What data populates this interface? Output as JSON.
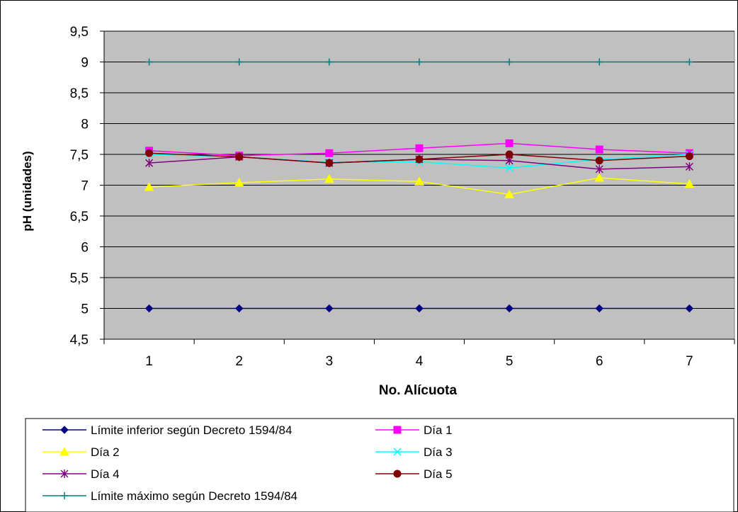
{
  "chart_data": {
    "type": "line",
    "title": "",
    "xlabel": "No. Alícuota",
    "ylabel": "pH (unidades)",
    "categories": [
      "1",
      "2",
      "3",
      "4",
      "5",
      "6",
      "7"
    ],
    "yticks": [
      "4,5",
      "5",
      "5,5",
      "6",
      "6,5",
      "7",
      "7,5",
      "8",
      "8,5",
      "9",
      "9,5"
    ],
    "ylim": [
      4.5,
      9.5
    ],
    "grid": "horizontal",
    "plot_background": "#C0C0C0",
    "legend_position": "bottom",
    "series": [
      {
        "name": "Límite inferior según Decreto 1594/84",
        "color": "#000080",
        "marker": "diamond",
        "values": [
          5,
          5,
          5,
          5,
          5,
          5,
          5
        ]
      },
      {
        "name": "Día 1",
        "color": "#FF00FF",
        "marker": "square",
        "values": [
          7.56,
          7.48,
          7.52,
          7.6,
          7.68,
          7.58,
          7.52
        ]
      },
      {
        "name": "Día 2",
        "color": "#FFFF00",
        "marker": "triangle",
        "values": [
          6.97,
          7.04,
          7.1,
          7.06,
          6.85,
          7.12,
          7.02
        ]
      },
      {
        "name": "Día 3",
        "color": "#00FFFF",
        "marker": "x",
        "values": [
          7.5,
          7.46,
          7.37,
          7.38,
          7.28,
          7.42,
          7.5
        ]
      },
      {
        "name": "Día 4",
        "color": "#800080",
        "marker": "star",
        "values": [
          7.36,
          7.46,
          7.36,
          7.42,
          7.4,
          7.26,
          7.3
        ]
      },
      {
        "name": "Día 5",
        "color": "#800000",
        "marker": "circle",
        "values": [
          7.52,
          7.46,
          7.36,
          7.42,
          7.5,
          7.4,
          7.47
        ]
      },
      {
        "name": "Límite máximo según Decreto 1594/84",
        "color": "#008080",
        "marker": "plus",
        "values": [
          9,
          9,
          9,
          9,
          9,
          9,
          9
        ]
      }
    ]
  }
}
